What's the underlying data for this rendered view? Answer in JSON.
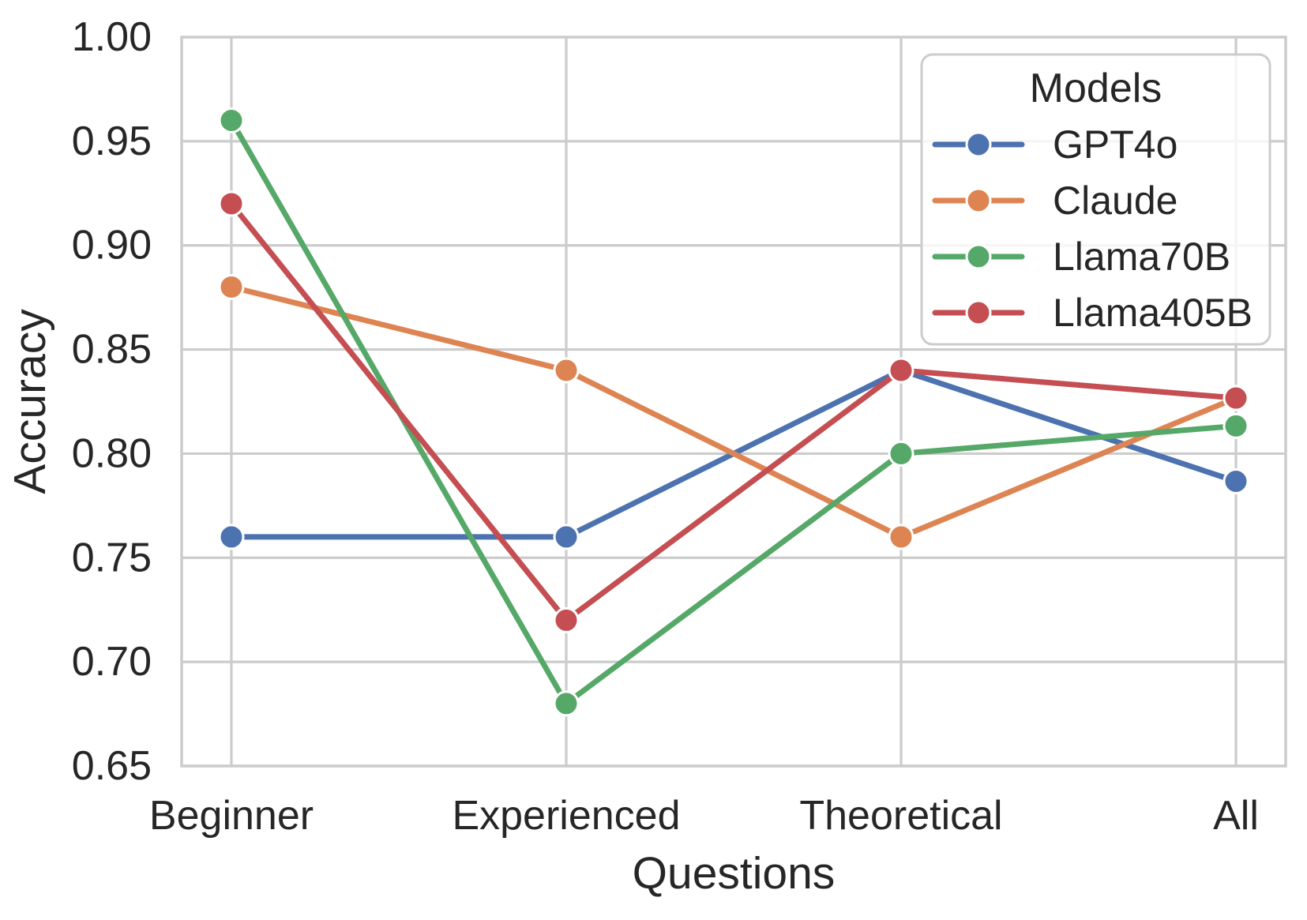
{
  "chart_data": {
    "type": "line",
    "title": "",
    "xlabel": "Questions",
    "ylabel": "Accuracy",
    "categories": [
      "Beginner",
      "Experienced",
      "Theoretical",
      "All"
    ],
    "series": [
      {
        "name": "GPT4o",
        "color": "#4C72B0",
        "values": [
          0.76,
          0.76,
          0.84,
          0.7867
        ]
      },
      {
        "name": "Claude",
        "color": "#DD8452",
        "values": [
          0.88,
          0.84,
          0.76,
          0.8267
        ]
      },
      {
        "name": "Llama70B",
        "color": "#55A868",
        "values": [
          0.96,
          0.68,
          0.8,
          0.8133
        ]
      },
      {
        "name": "Llama405B",
        "color": "#C44E52",
        "values": [
          0.92,
          0.72,
          0.84,
          0.8267
        ]
      }
    ],
    "ylim": [
      0.65,
      1.0
    ],
    "ytick_labels": [
      "0.65",
      "0.70",
      "0.75",
      "0.80",
      "0.85",
      "0.90",
      "0.95",
      "1.00"
    ],
    "grid": true,
    "legend": {
      "title": "Models",
      "position": "upper-right"
    }
  },
  "style": {
    "grid_color": "#CCCCCC",
    "spine_color": "#CCCCCC",
    "text_color": "#262626",
    "marker_edge_color": "#FFFFFF",
    "background": "#FFFFFF",
    "legend_fill": "rgba(255,255,255,0.8)"
  }
}
